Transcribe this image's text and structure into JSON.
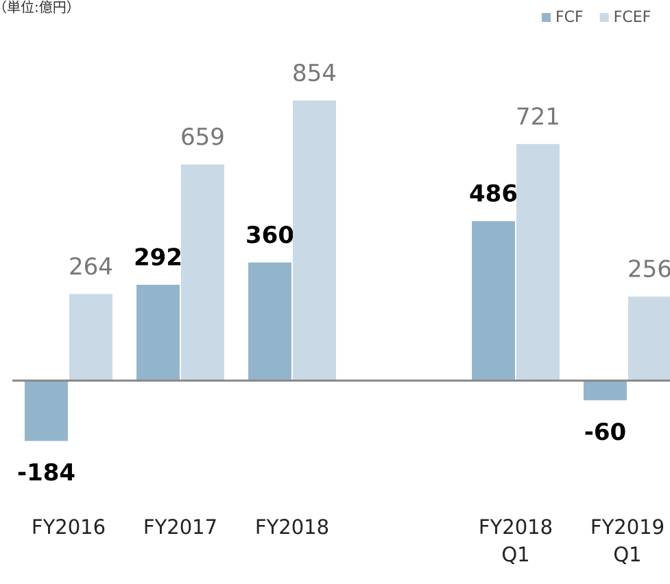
{
  "chart_data": {
    "type": "bar",
    "subtitle": "（単位:億円）",
    "categories": [
      "FY2016",
      "FY2017",
      "FY2018",
      null,
      "FY2018\nQ1",
      "FY2019\nQ1"
    ],
    "series": [
      {
        "name": "FCF",
        "color": "#93b5cb",
        "values": [
          -184,
          292,
          360,
          null,
          486,
          -60
        ]
      },
      {
        "name": "FCEF",
        "color": "#c9dae6",
        "values": [
          264,
          659,
          854,
          null,
          721,
          256
        ]
      }
    ],
    "ylim": [
      -620,
      1160
    ],
    "legend": "top-right"
  }
}
